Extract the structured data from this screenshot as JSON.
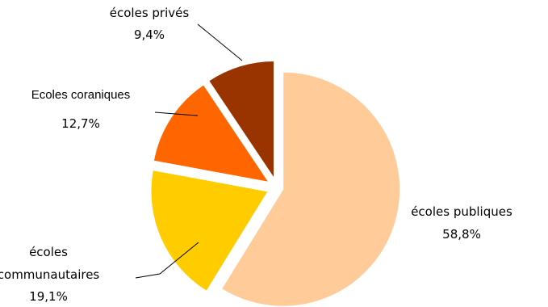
{
  "chart_data": {
    "type": "pie",
    "title": "",
    "exploded": true,
    "start_angle_deg": 0,
    "slices": [
      {
        "name": "écoles publiques",
        "value": 58.8,
        "label_value": "58,8%",
        "color": "#FFCC99",
        "label_lines": [
          "écoles publiques"
        ]
      },
      {
        "name": "écoles communautaires",
        "value": 19.1,
        "label_value": "19,1%",
        "color": "#FFCC00",
        "label_lines": [
          "écoles",
          "communautaires"
        ]
      },
      {
        "name": "Ecoles coraniques",
        "value": 12.7,
        "label_value": "12,7%",
        "color": "#FF6600",
        "label_lines": [
          "Ecoles coraniques"
        ]
      },
      {
        "name": "écoles privés",
        "value": 9.4,
        "label_value": "9,4%",
        "color": "#993300",
        "label_lines": [
          "écoles privés"
        ]
      }
    ]
  }
}
